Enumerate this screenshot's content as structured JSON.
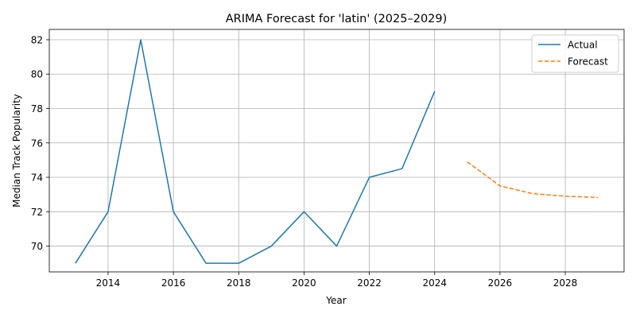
{
  "chart_data": {
    "type": "line",
    "title": "ARIMA Forecast for 'latin' (2025–2029)",
    "xlabel": "Year",
    "ylabel": "Median Track Popularity",
    "xlim": [
      2012.2,
      2029.8
    ],
    "ylim": [
      68.5,
      82.6
    ],
    "xticks": [
      2014,
      2016,
      2018,
      2020,
      2022,
      2024,
      2026,
      2028
    ],
    "yticks": [
      70,
      72,
      74,
      76,
      78,
      80,
      82
    ],
    "grid": true,
    "legend_position": "top-right",
    "series": [
      {
        "name": "Actual",
        "color": "#1f77b4",
        "style": "solid",
        "x": [
          2013,
          2014,
          2015,
          2016,
          2017,
          2018,
          2019,
          2020,
          2021,
          2022,
          2023,
          2024
        ],
        "y": [
          69,
          72,
          82,
          72,
          69,
          69,
          70,
          72,
          70,
          74,
          74.5,
          79
        ]
      },
      {
        "name": "Forecast",
        "color": "#ff7f0e",
        "style": "dashed",
        "x": [
          2025,
          2026,
          2027,
          2028,
          2029
        ],
        "y": [
          74.9,
          73.5,
          73.05,
          72.9,
          72.83
        ]
      }
    ]
  }
}
